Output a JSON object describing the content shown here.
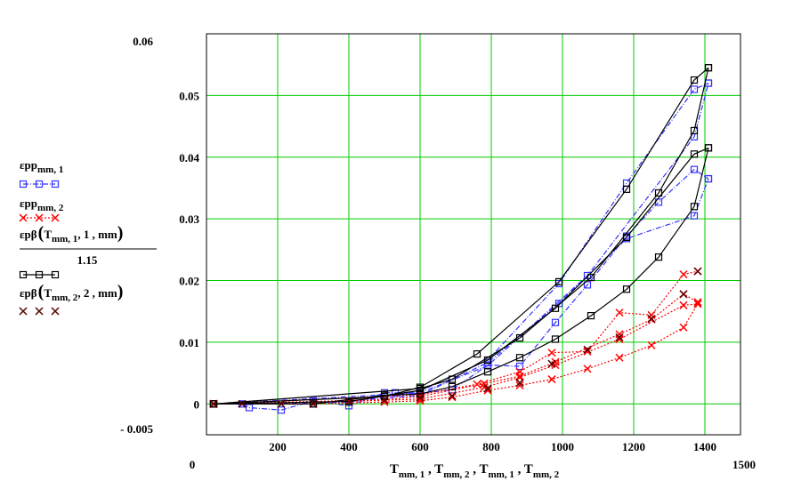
{
  "chart_data": {
    "type": "line",
    "title": "",
    "xlabel": "Tmm,1, Tmm,2, Tmm,1, Tmm,2",
    "xlim": [
      0,
      1500
    ],
    "ylim": [
      -0.005,
      0.06
    ],
    "grid": true,
    "grid_color": "#00cc00",
    "x_ticks": [
      200,
      400,
      600,
      800,
      1000,
      1200,
      1400
    ],
    "y_ticks": [
      0,
      0.01,
      0.02,
      0.03,
      0.04,
      0.05
    ],
    "corner_labels": {
      "y_max": "0.06",
      "y_min": "- 0.005",
      "x_min": "0",
      "x_max": "1500"
    },
    "legend_position": "left",
    "legend": {
      "s1": "εpp",
      "s1_sub": "mm, 1",
      "s2": "εpp",
      "s2_sub": "mm, 2",
      "s3_main": "εpβ",
      "s3_args": "T",
      "s3_args_sub": "mm, 1",
      "s3_rest": ", 1 , mm",
      "s3_den": "1.15",
      "s4_main": "εpβ",
      "s4_args": "T",
      "s4_args_sub": "mm, 2",
      "s4_rest": ", 2 , mm"
    },
    "series": [
      {
        "key": "s1",
        "color": "#3333ff",
        "dash": "6,2,1,2",
        "marker": "square",
        "polylines": [
          [
            [
              20,
              0
            ],
            [
              100,
              0
            ],
            [
              120,
              -0.0006
            ],
            [
              210,
              -0.001
            ],
            [
              300,
              0.0005
            ],
            [
              400,
              -0.0003
            ],
            [
              500,
              0.0018
            ],
            [
              530,
              0.0018
            ],
            [
              600,
              0.0017
            ],
            [
              690,
              0.0023
            ],
            [
              790,
              0.0063
            ],
            [
              880,
              0.0061
            ],
            [
              980,
              0.0132
            ],
            [
              1070,
              0.0193
            ],
            [
              1180,
              0.0272
            ],
            [
              1270,
              0.0327
            ],
            [
              1370,
              0.038
            ],
            [
              1410,
              0.0365
            ]
          ],
          [
            [
              20,
              0
            ],
            [
              300,
              0
            ],
            [
              600,
              0.0014
            ],
            [
              790,
              0.0067
            ],
            [
              990,
              0.0163
            ],
            [
              1180,
              0.0268
            ],
            [
              1370,
              0.0305
            ],
            [
              1410,
              0.0365
            ]
          ],
          [
            [
              20,
              0
            ],
            [
              400,
              0.0003
            ],
            [
              600,
              0.0021
            ],
            [
              790,
              0.0071
            ],
            [
              990,
              0.0195
            ],
            [
              1180,
              0.0358
            ],
            [
              1370,
              0.051
            ],
            [
              1410,
              0.052
            ]
          ],
          [
            [
              20,
              0
            ],
            [
              600,
              0.0018
            ],
            [
              790,
              0.0062
            ],
            [
              1070,
              0.0208
            ],
            [
              1370,
              0.0433
            ],
            [
              1410,
              0.052
            ]
          ]
        ]
      },
      {
        "key": "s2",
        "color": "#ff0000",
        "dash": "2,2",
        "marker": "x",
        "polylines": [
          [
            [
              20,
              0
            ],
            [
              300,
              0
            ],
            [
              500,
              0.0003
            ],
            [
              600,
              0.0005
            ],
            [
              690,
              0.0011
            ],
            [
              790,
              0.0022
            ],
            [
              880,
              0.003
            ],
            [
              970,
              0.004
            ],
            [
              1070,
              0.0057
            ],
            [
              1160,
              0.0075
            ],
            [
              1250,
              0.0095
            ],
            [
              1340,
              0.0124
            ],
            [
              1380,
              0.0162
            ]
          ],
          [
            [
              20,
              0
            ],
            [
              400,
              0.0004
            ],
            [
              600,
              0.0008
            ],
            [
              780,
              0.0027
            ],
            [
              880,
              0.0043
            ],
            [
              980,
              0.0063
            ],
            [
              1160,
              0.0105
            ],
            [
              1340,
              0.016
            ],
            [
              1380,
              0.0162
            ]
          ],
          [
            [
              20,
              0
            ],
            [
              500,
              0.0007
            ],
            [
              600,
              0.0012
            ],
            [
              780,
              0.0033
            ],
            [
              880,
              0.0045
            ],
            [
              980,
              0.0068
            ],
            [
              1160,
              0.0113
            ],
            [
              1250,
              0.0137
            ],
            [
              1340,
              0.0178
            ],
            [
              1380,
              0.0165
            ]
          ],
          [
            [
              20,
              0
            ],
            [
              600,
              0.0015
            ],
            [
              760,
              0.0032
            ],
            [
              880,
              0.0052
            ],
            [
              970,
              0.0083
            ],
            [
              1070,
              0.0085
            ],
            [
              1160,
              0.0148
            ],
            [
              1250,
              0.0144
            ],
            [
              1340,
              0.021
            ],
            [
              1380,
              0.0215
            ]
          ]
        ]
      },
      {
        "key": "s3",
        "color": "#000000",
        "dash": "",
        "marker": "square",
        "polylines": [
          [
            [
              20,
              0
            ],
            [
              300,
              0
            ],
            [
              500,
              0.0014
            ],
            [
              600,
              0.0016
            ],
            [
              690,
              0.0028
            ],
            [
              790,
              0.0052
            ],
            [
              880,
              0.0075
            ],
            [
              980,
              0.0105
            ],
            [
              1080,
              0.0143
            ],
            [
              1180,
              0.0186
            ],
            [
              1270,
              0.0238
            ],
            [
              1370,
              0.032
            ],
            [
              1410,
              0.0415
            ]
          ],
          [
            [
              20,
              0
            ],
            [
              400,
              0.0004
            ],
            [
              600,
              0.0022
            ],
            [
              790,
              0.0071
            ],
            [
              980,
              0.0155
            ],
            [
              1180,
              0.027
            ],
            [
              1370,
              0.0405
            ],
            [
              1410,
              0.0415
            ]
          ],
          [
            [
              20,
              0
            ],
            [
              500,
              0.0012
            ],
            [
              600,
              0.0027
            ],
            [
              760,
              0.0081
            ],
            [
              990,
              0.0198
            ],
            [
              1180,
              0.0348
            ],
            [
              1370,
              0.0525
            ],
            [
              1410,
              0.0545
            ]
          ],
          [
            [
              20,
              0
            ],
            [
              600,
              0.0025
            ],
            [
              690,
              0.004
            ],
            [
              880,
              0.0107
            ],
            [
              1080,
              0.0205
            ],
            [
              1270,
              0.0342
            ],
            [
              1370,
              0.0443
            ],
            [
              1410,
              0.0545
            ]
          ]
        ]
      },
      {
        "key": "s4",
        "color": "#550000",
        "dash": "",
        "marker": "x",
        "lines": false,
        "points": [
          [
            20,
            0
          ],
          [
            100,
            0
          ],
          [
            210,
            0
          ],
          [
            300,
            0
          ],
          [
            400,
            0.0003
          ],
          [
            500,
            0.0006
          ],
          [
            600,
            0.001
          ],
          [
            690,
            0.0013
          ],
          [
            790,
            0.0025
          ],
          [
            880,
            0.0034
          ],
          [
            970,
            0.0065
          ],
          [
            1070,
            0.0088
          ],
          [
            1160,
            0.0108
          ],
          [
            1250,
            0.0138
          ],
          [
            1340,
            0.0178
          ],
          [
            1380,
            0.0215
          ]
        ]
      }
    ]
  }
}
